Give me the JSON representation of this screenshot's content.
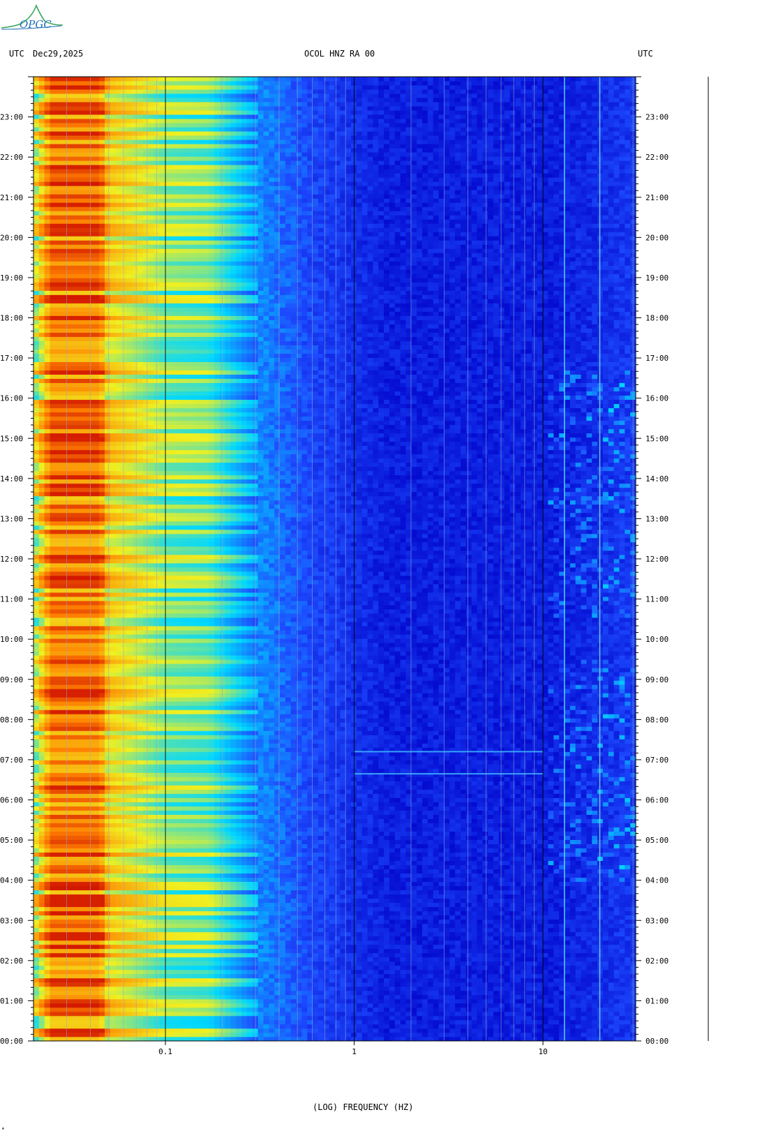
{
  "header": {
    "left_tz": "UTC",
    "date": "Dec29,2025",
    "station": "OCOL HNZ RA 00",
    "right_tz": "UTC"
  },
  "logo": {
    "text": "OPGC",
    "accent": "#1f6fb8",
    "green": "#3aa65a"
  },
  "chart_data": {
    "type": "heatmap",
    "title": "OCOL HNZ RA 00",
    "xlabel": "(LOG) FREQUENCY (HZ)",
    "xscale": "log",
    "xlim": [
      0.02,
      31
    ],
    "x_tick_labels": [
      {
        "value": 0.1,
        "label": "0.1"
      },
      {
        "value": 1,
        "label": "1"
      },
      {
        "value": 10,
        "label": "10"
      }
    ],
    "ylim_hours": [
      0,
      24
    ],
    "y_tick_labels": [
      "00:00",
      "01:00",
      "02:00",
      "03:00",
      "04:00",
      "05:00",
      "06:00",
      "07:00",
      "08:00",
      "09:00",
      "10:00",
      "11:00",
      "12:00",
      "13:00",
      "14:00",
      "15:00",
      "16:00",
      "17:00",
      "18:00",
      "19:00",
      "20:00",
      "21:00",
      "22:00",
      "23:00"
    ],
    "colormap": [
      "#0000c8",
      "#1e4cff",
      "#00d8ff",
      "#f0f020",
      "#ff8000",
      "#c80000"
    ],
    "intensity_profile": [
      {
        "freq_hz": 0.02,
        "level": 0.55
      },
      {
        "freq_hz": 0.025,
        "level": 0.82
      },
      {
        "freq_hz": 0.045,
        "level": 0.82
      },
      {
        "freq_hz": 0.05,
        "level": 0.66
      },
      {
        "freq_hz": 0.07,
        "level": 0.6
      },
      {
        "freq_hz": 0.1,
        "level": 0.52
      },
      {
        "freq_hz": 0.17,
        "level": 0.5
      },
      {
        "freq_hz": 0.3,
        "level": 0.3
      },
      {
        "freq_hz": 0.6,
        "level": 0.18
      },
      {
        "freq_hz": 1.5,
        "level": 0.08
      },
      {
        "freq_hz": 12,
        "level": 0.08
      },
      {
        "freq_hz": 31,
        "level": 0.15
      }
    ],
    "bright_lines_hz": [
      13,
      20
    ],
    "events": [
      {
        "hour": 6.65,
        "f_min_hz": 1,
        "f_max_hz": 10
      },
      {
        "hour": 7.2,
        "f_min_hz": 1,
        "f_max_hz": 10
      }
    ],
    "active_hours_high_freq": [
      [
        4,
        9.5
      ],
      [
        10.5,
        16.7
      ]
    ],
    "grid": true
  }
}
